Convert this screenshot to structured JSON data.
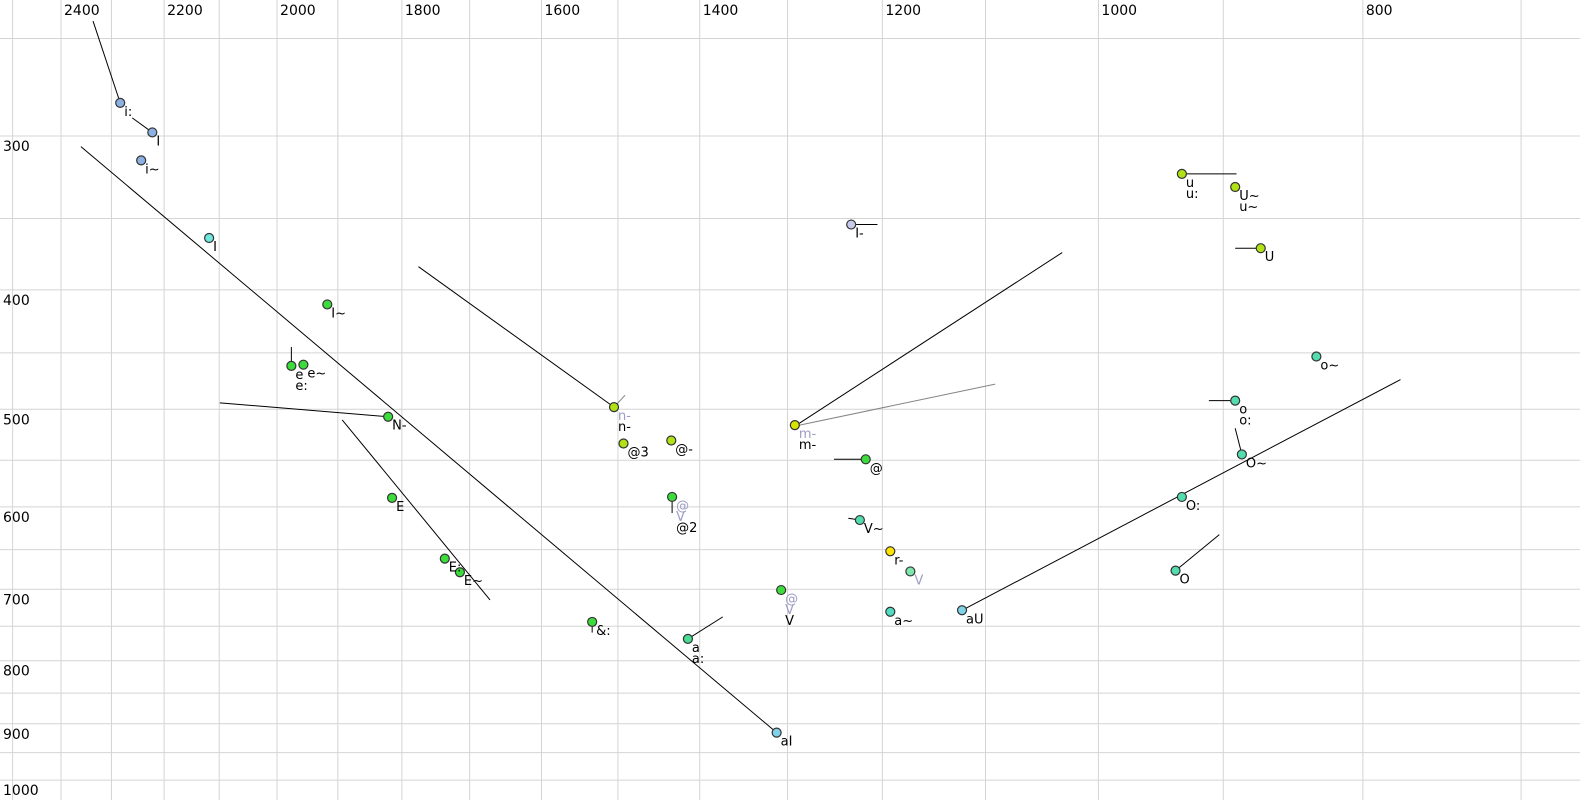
{
  "chart_data": {
    "type": "scatter",
    "title": "",
    "x_axis": {
      "tick_labels": [
        2400,
        2200,
        2000,
        1800,
        1600,
        1400,
        1200,
        1000,
        800
      ],
      "scale": "log",
      "direction": "values-decrease-to-right",
      "gridline_step": 100,
      "gridline_range": [
        2500,
        700
      ]
    },
    "y_axis": {
      "tick_labels": [
        300,
        400,
        500,
        600,
        700,
        800,
        900,
        1000
      ],
      "scale": "log",
      "direction": "values-increase-downward",
      "gridline_step": 50,
      "gridline_range": [
        250,
        1000
      ]
    },
    "colors": {
      "grid": "#d4d4d4",
      "line": "#000000",
      "gray_line": "#848484",
      "gray_label": "#9d9dc6",
      "point_border": "#333333",
      "blue": "#8cb0e2",
      "cyan": "#6fe8e0",
      "green": "#3ddc3d",
      "yellow_green": "#b1e216",
      "yellow_dark": "#d6e400",
      "yellow": "#ffe400",
      "teal": "#52dcb0",
      "teal_green": "#49dc93",
      "mint": "#7ee6ac",
      "light_blue": "#7fd2e8",
      "lavender": "#c9cbee"
    },
    "points": [
      {
        "labels": [
          "i:"
        ],
        "gray_labels": [],
        "f2": 2283,
        "f1": 282,
        "color": "#8cb0e2"
      },
      {
        "labels": [
          "I"
        ],
        "gray_labels": [],
        "f2": 2222,
        "f1": 298,
        "color": "#8cb0e2"
      },
      {
        "labels": [
          "i~"
        ],
        "gray_labels": [],
        "f2": 2243,
        "f1": 314,
        "color": "#8cb0e2"
      },
      {
        "labels": [
          "I"
        ],
        "gray_labels": [],
        "f2": 2118,
        "f1": 363,
        "color": "#6fe8e0"
      },
      {
        "labels": [
          "I~"
        ],
        "gray_labels": [],
        "f2": 1917,
        "f1": 411,
        "color": "#3ddc3d"
      },
      {
        "labels": [
          "e",
          "e:"
        ],
        "gray_labels": [],
        "f2": 1976,
        "f1": 461,
        "color": "#3ddc3d"
      },
      {
        "labels": [
          "e~"
        ],
        "gray_labels": [],
        "f2": 1956,
        "f1": 460,
        "color": "#3ddc3d"
      },
      {
        "labels": [
          "N-"
        ],
        "gray_labels": [],
        "f2": 1821,
        "f1": 507,
        "color": "#3ddc3d"
      },
      {
        "labels": [
          "E"
        ],
        "gray_labels": [],
        "f2": 1815,
        "f1": 590,
        "color": "#3ddc3d"
      },
      {
        "labels": [
          "E:"
        ],
        "gray_labels": [],
        "f2": 1736,
        "f1": 661,
        "color": "#3ddc3d"
      },
      {
        "labels": [
          "E~"
        ],
        "gray_labels": [],
        "f2": 1714,
        "f1": 678,
        "color": "#3ddc3d"
      },
      {
        "labels": [
          "n-"
        ],
        "gray_labels": [
          "n-"
        ],
        "f2": 1505,
        "f1": 498,
        "color": "#b1e216"
      },
      {
        "labels": [
          "@3"
        ],
        "gray_labels": [],
        "f2": 1493,
        "f1": 533,
        "color": "#b1e216"
      },
      {
        "labels": [
          "@-"
        ],
        "gray_labels": [],
        "f2": 1434,
        "f1": 530,
        "color": "#b1e216"
      },
      {
        "labels": [
          "@2"
        ],
        "gray_labels": [
          "@",
          "V"
        ],
        "f2": 1433,
        "f1": 589,
        "color": "#3ddc3d"
      },
      {
        "labels": [
          "&:"
        ],
        "gray_labels": [],
        "f2": 1533,
        "f1": 744,
        "color": "#3ddc3d"
      },
      {
        "labels": [
          "a",
          "a:"
        ],
        "gray_labels": [],
        "f2": 1414,
        "f1": 768,
        "color": "#49dc93"
      },
      {
        "labels": [
          "aI"
        ],
        "gray_labels": [],
        "f2": 1312,
        "f1": 915,
        "color": "#7fd2e8"
      },
      {
        "labels": [
          "m-"
        ],
        "gray_labels": [
          "m-"
        ],
        "f2": 1292,
        "f1": 515,
        "color": "#d6e400"
      },
      {
        "labels": [
          "@"
        ],
        "gray_labels": [],
        "f2": 1217,
        "f1": 549,
        "color": "#3ddc3d"
      },
      {
        "labels": [
          "V~"
        ],
        "gray_labels": [],
        "f2": 1223,
        "f1": 615,
        "color": "#52dcb0"
      },
      {
        "labels": [
          "r-"
        ],
        "gray_labels": [],
        "f2": 1192,
        "f1": 652,
        "color": "#ffe400"
      },
      {
        "labels": [],
        "gray_labels": [
          "V"
        ],
        "f2": 1172,
        "f1": 677,
        "color": "#7ee6ac"
      },
      {
        "labels": [
          "V"
        ],
        "gray_labels": [
          "@",
          "V"
        ],
        "f2": 1307,
        "f1": 701,
        "color": "#3ddc3d"
      },
      {
        "labels": [
          "a~"
        ],
        "gray_labels": [],
        "f2": 1192,
        "f1": 730,
        "color": "#52dcc4"
      },
      {
        "labels": [
          "aU"
        ],
        "gray_labels": [],
        "f2": 1122,
        "f1": 728,
        "color": "#7fd2e8"
      },
      {
        "labels": [
          "I-"
        ],
        "gray_labels": [],
        "f2": 1232,
        "f1": 354,
        "color": "#c9cbee"
      },
      {
        "labels": [
          "u",
          "u:"
        ],
        "gray_labels": [],
        "f2": 932,
        "f1": 322,
        "color": "#b1e216"
      },
      {
        "labels": [
          "U~",
          "u~"
        ],
        "gray_labels": [],
        "f2": 891,
        "f1": 330,
        "color": "#b1e216"
      },
      {
        "labels": [
          "U"
        ],
        "gray_labels": [],
        "f2": 872,
        "f1": 370,
        "color": "#b1e216"
      },
      {
        "labels": [
          "o~"
        ],
        "gray_labels": [],
        "f2": 832,
        "f1": 453,
        "color": "#52dcb0"
      },
      {
        "labels": [
          "o",
          "o:"
        ],
        "gray_labels": [],
        "f2": 891,
        "f1": 492,
        "color": "#52dcb0"
      },
      {
        "labels": [
          "O~"
        ],
        "gray_labels": [],
        "f2": 886,
        "f1": 544,
        "color": "#52dcb0"
      },
      {
        "labels": [
          "O:"
        ],
        "gray_labels": [],
        "f2": 932,
        "f1": 589,
        "color": "#52dcb0"
      },
      {
        "labels": [
          "O"
        ],
        "gray_labels": [],
        "f2": 937,
        "f1": 676,
        "color": "#52dcb0"
      }
    ],
    "segments": [
      {
        "f2": [
          2336,
          2283
        ],
        "f1": [
          242,
          282
        ],
        "color": "black"
      },
      {
        "f2": [
          2260,
          2222
        ],
        "f1": [
          290,
          298
        ],
        "color": "black"
      },
      {
        "f2": [
          2360,
          1312
        ],
        "f1": [
          306,
          915
        ],
        "color": "black"
      },
      {
        "f2": [
          1893,
          1671
        ],
        "f1": [
          510,
          714
        ],
        "color": "black"
      },
      {
        "f2": [
          2099,
          1821
        ],
        "f1": [
          494,
          507
        ],
        "color": "black"
      },
      {
        "f2": [
          1775,
          1505
        ],
        "f1": [
          383,
          498
        ],
        "color": "black"
      },
      {
        "f2": [
          1491,
          1505
        ],
        "f1": [
          487,
          498
        ],
        "color": "gray"
      },
      {
        "f2": [
          1292,
          1031
        ],
        "f1": [
          516,
          373
        ],
        "color": "black"
      },
      {
        "f2": [
          1292,
          1091
        ],
        "f1": [
          516,
          477
        ],
        "color": "gray"
      },
      {
        "f2": [
          1250,
          1217
        ],
        "f1": [
          549,
          549
        ],
        "color": "black"
      },
      {
        "f2": [
          1235,
          1223
        ],
        "f1": [
          613,
          615
        ],
        "color": "black"
      },
      {
        "f2": [
          1122,
          775
        ],
        "f1": [
          728,
          473
        ],
        "color": "black"
      },
      {
        "f2": [
          937,
          903
        ],
        "f1": [
          676,
          632
        ],
        "color": "black"
      },
      {
        "f2": [
          911,
          891
        ],
        "f1": [
          492,
          492
        ],
        "color": "black"
      },
      {
        "f2": [
          891,
          886
        ],
        "f1": [
          518,
          544
        ],
        "color": "black"
      },
      {
        "f2": [
          932,
          890
        ],
        "f1": [
          322,
          322
        ],
        "color": "black"
      },
      {
        "f2": [
          891,
          872
        ],
        "f1": [
          370,
          370
        ],
        "color": "black"
      },
      {
        "f2": [
          1232,
          1205
        ],
        "f1": [
          354,
          354
        ],
        "color": "black"
      },
      {
        "f2": [
          1414,
          1373
        ],
        "f1": [
          768,
          737
        ],
        "color": "black"
      },
      {
        "f2": [
          1976,
          1976
        ],
        "f1": [
          445,
          458
        ],
        "color": "black"
      },
      {
        "f2": [
          1433,
          1433
        ],
        "f1": [
          592,
          607
        ],
        "color": "black"
      },
      {
        "f2": [
          1533,
          1533
        ],
        "f1": [
          748,
          759
        ],
        "color": "black"
      },
      {
        "f2": [
          1192,
          1192
        ],
        "f1": [
          646,
          652
        ],
        "color": "black"
      }
    ]
  }
}
